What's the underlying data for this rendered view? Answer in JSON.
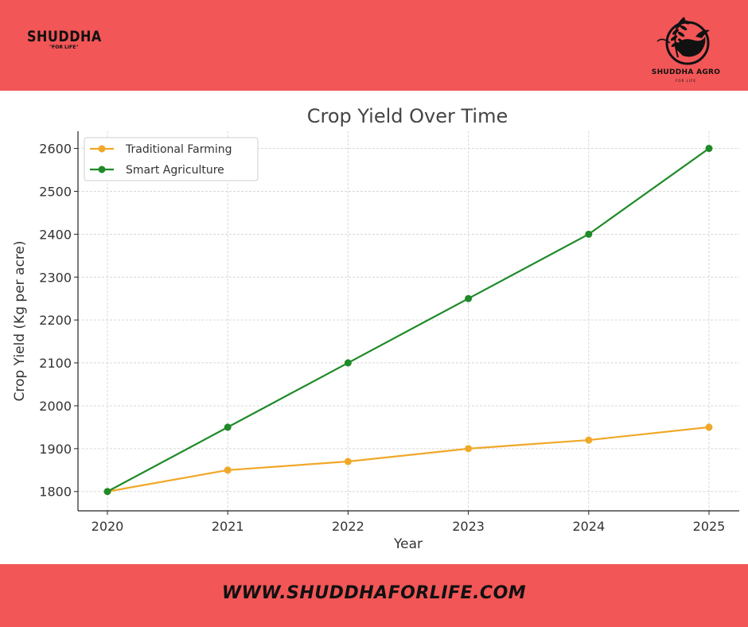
{
  "brand": {
    "left_name": "SHUDDHA",
    "left_tagline": "\"FOR LIFE\"",
    "logo_name": "SHUDDHA AGRO",
    "logo_tagline": "FOR LIFE",
    "website": "WWW.SHUDDHAFORLIFE.COM"
  },
  "colors": {
    "band": "#f25657",
    "traditional": "#f0a828",
    "smart": "#1f8a28"
  },
  "chart_data": {
    "type": "line",
    "title": "Crop Yield Over Time",
    "xlabel": "Year",
    "ylabel": "Crop Yield (Kg per acre)",
    "x": [
      "2020",
      "2021",
      "2022",
      "2023",
      "2024",
      "2025"
    ],
    "ylim": [
      1755,
      2640
    ],
    "yticks": [
      1800,
      1900,
      2000,
      2100,
      2200,
      2300,
      2400,
      2500,
      2600
    ],
    "grid": true,
    "legend_position": "top-left",
    "series": [
      {
        "name": "Traditional Farming",
        "color": "#f0a828",
        "values": [
          1800,
          1850,
          1870,
          1900,
          1920,
          1950
        ]
      },
      {
        "name": "Smart Agriculture",
        "color": "#1f8a28",
        "values": [
          1800,
          1950,
          2100,
          2250,
          2400,
          2600
        ]
      }
    ]
  }
}
